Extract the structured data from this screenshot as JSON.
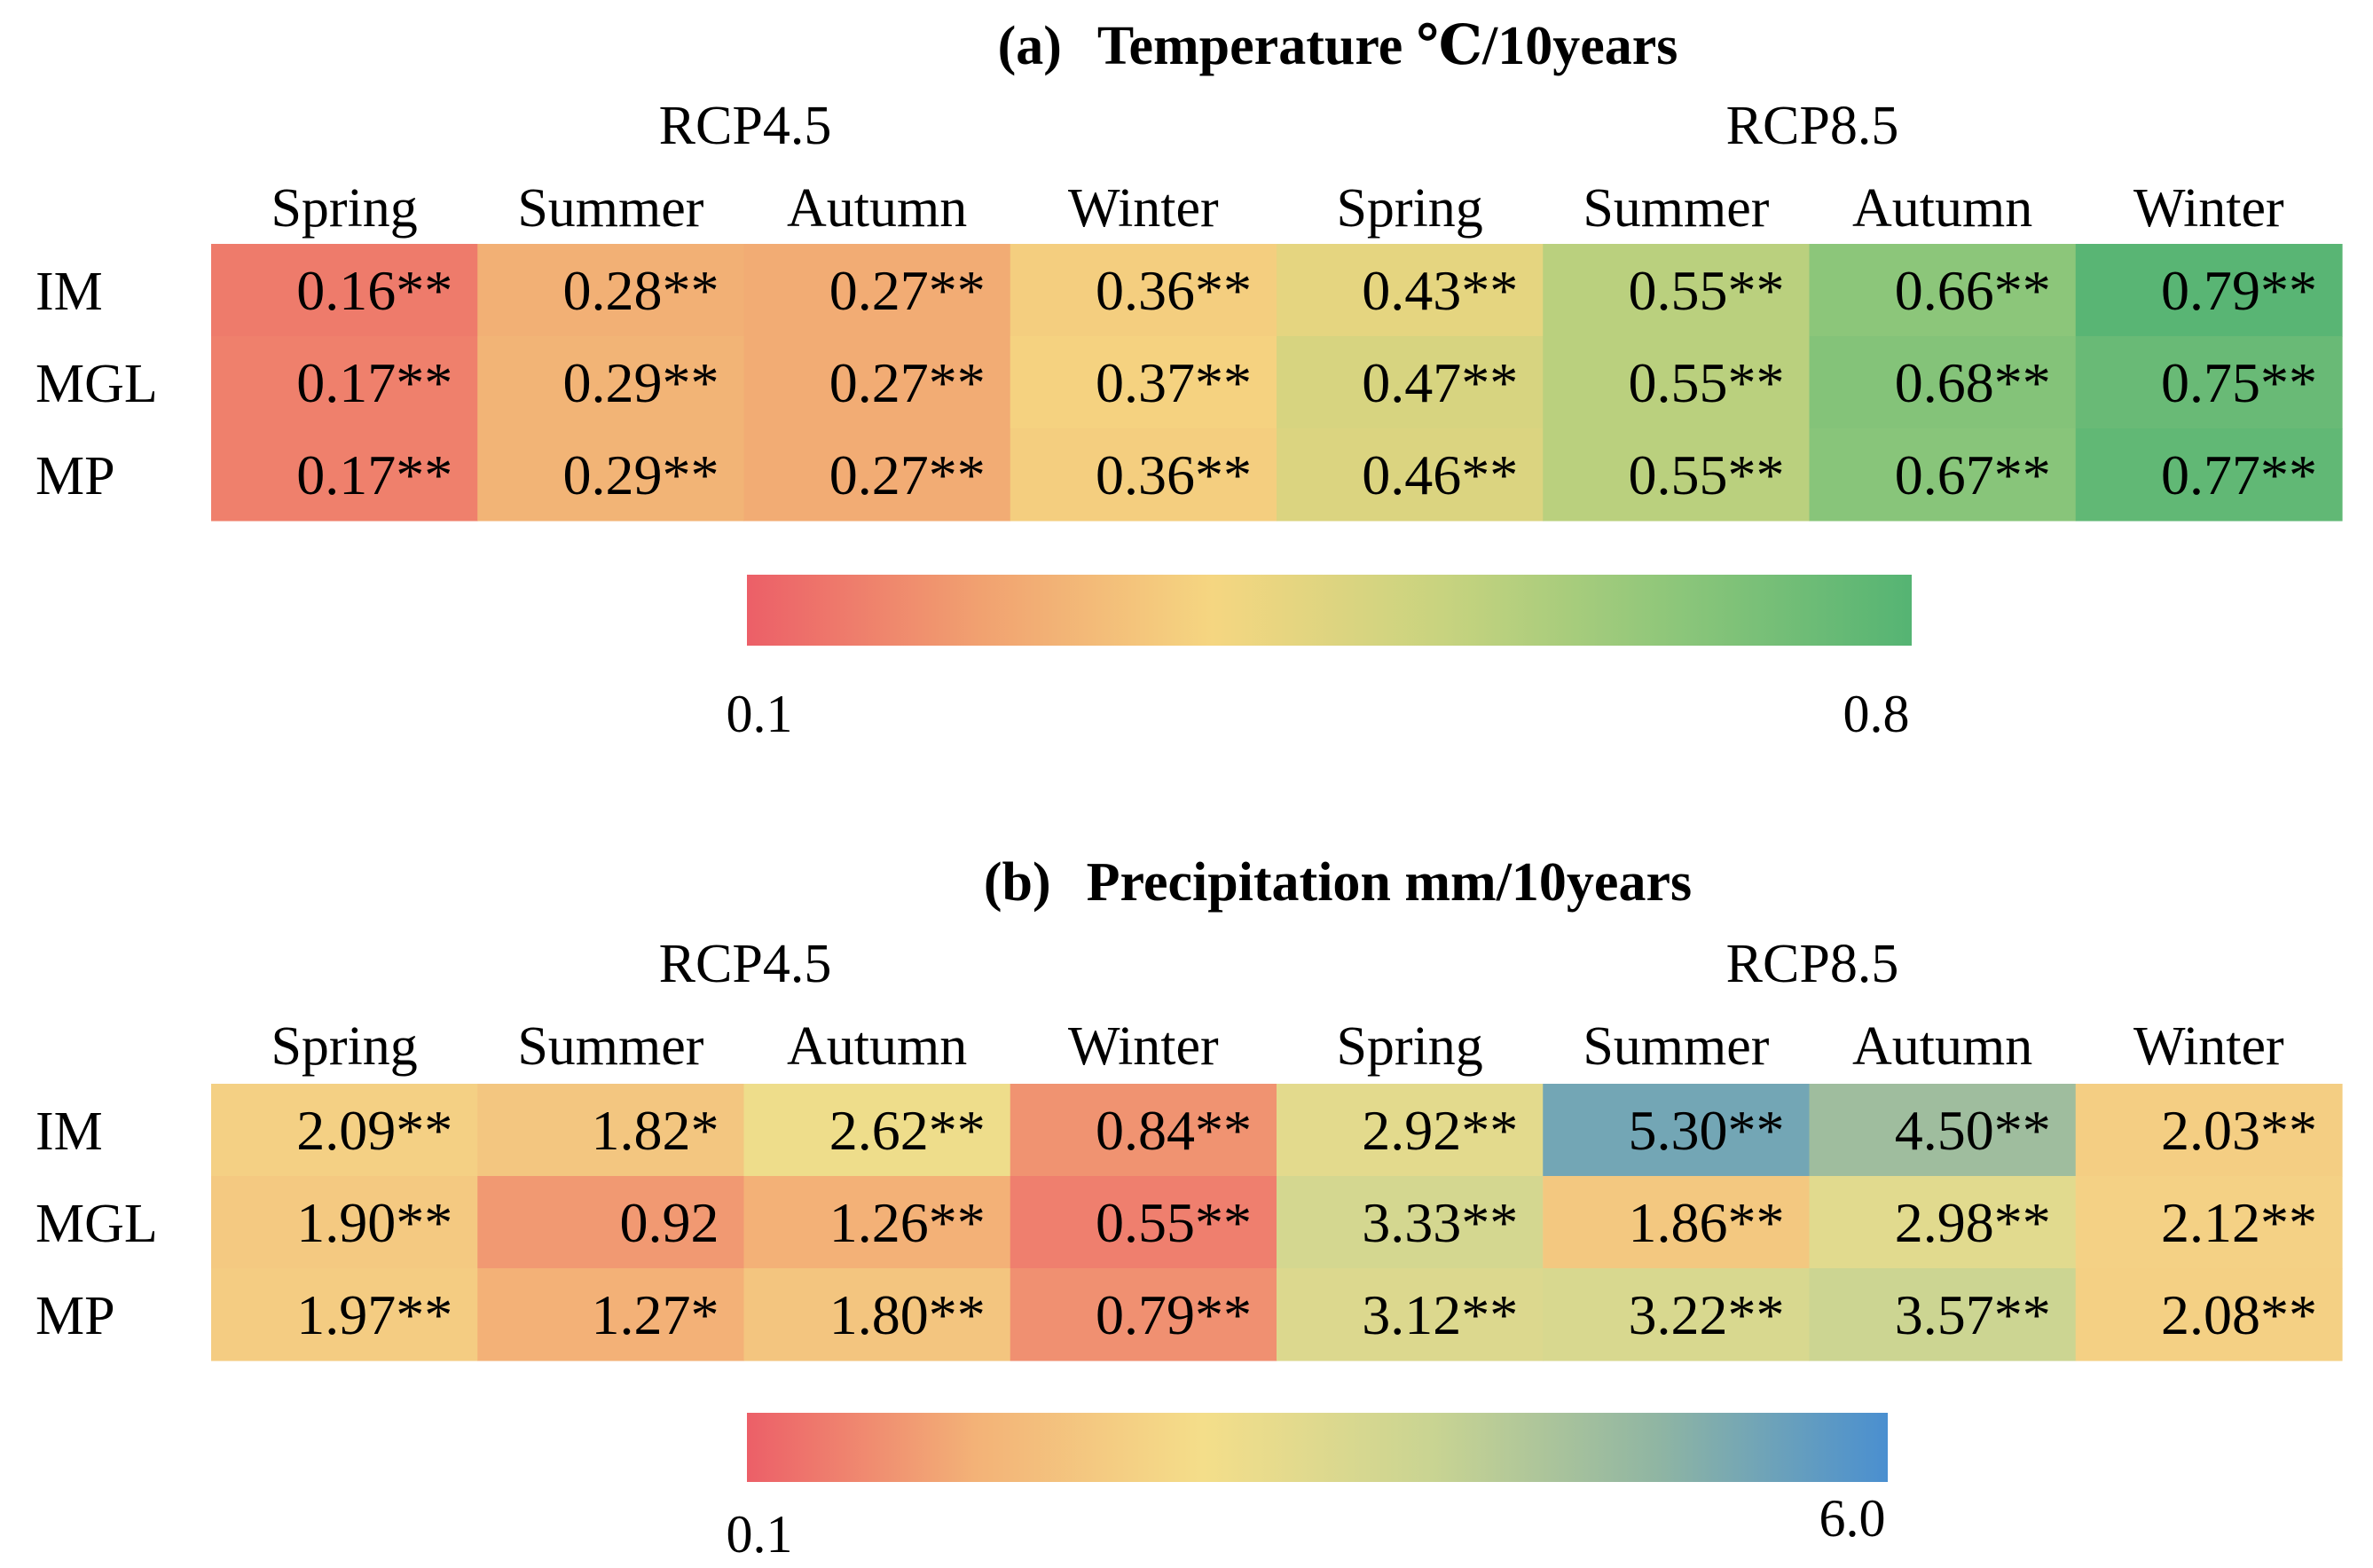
{
  "chart_data": [
    {
      "type": "heatmap",
      "title_prefix": "(a)",
      "title": "Temperature ℃/10years",
      "groups": [
        "RCP4.5",
        "RCP8.5"
      ],
      "columns": [
        "Spring",
        "Summer",
        "Autumn",
        "Winter",
        "Spring",
        "Summer",
        "Autumn",
        "Winter"
      ],
      "rows": [
        "IM",
        "MGL",
        "MP"
      ],
      "values": [
        [
          0.16,
          0.28,
          0.27,
          0.36,
          0.43,
          0.55,
          0.66,
          0.79
        ],
        [
          0.17,
          0.29,
          0.27,
          0.37,
          0.47,
          0.55,
          0.68,
          0.75
        ],
        [
          0.17,
          0.29,
          0.27,
          0.36,
          0.46,
          0.55,
          0.67,
          0.77
        ]
      ],
      "labels": [
        [
          "0.16**",
          "0.28**",
          "0.27**",
          "0.36**",
          "0.43**",
          "0.55**",
          "0.66**",
          "0.79**"
        ],
        [
          "0.17**",
          "0.29**",
          "0.27**",
          "0.37**",
          "0.47**",
          "0.55**",
          "0.68**",
          "0.75**"
        ],
        [
          "0.17**",
          "0.29**",
          "0.27**",
          "0.36**",
          "0.46**",
          "0.55**",
          "0.67**",
          "0.77**"
        ]
      ],
      "colorbar": {
        "min": 0.1,
        "max": 0.8,
        "min_label": "0.1",
        "max_label": "0.8",
        "colors": [
          "#ec5f68",
          "#f1a170",
          "#f5d681",
          "#c7d37f",
          "#8cc67a",
          "#55b473"
        ]
      }
    },
    {
      "type": "heatmap",
      "title_prefix": "(b)",
      "title": "Precipitation  mm/10years",
      "groups": [
        "RCP4.5",
        "RCP8.5"
      ],
      "columns": [
        "Spring",
        "Summer",
        "Autumn",
        "Winter",
        "Spring",
        "Summer",
        "Autumn",
        "Winter"
      ],
      "rows": [
        "IM",
        "MGL",
        "MP"
      ],
      "values": [
        [
          2.09,
          1.82,
          2.62,
          0.84,
          2.92,
          5.3,
          4.5,
          2.03
        ],
        [
          1.9,
          0.92,
          1.26,
          0.55,
          3.33,
          1.86,
          2.98,
          2.12
        ],
        [
          1.97,
          1.27,
          1.8,
          0.79,
          3.12,
          3.22,
          3.57,
          2.08
        ]
      ],
      "labels": [
        [
          "2.09**",
          "1.82*",
          "2.62**",
          "0.84**",
          "2.92**",
          "5.30**",
          "4.50**",
          "2.03**"
        ],
        [
          "1.90**",
          "0.92",
          "1.26**",
          "0.55**",
          "3.33**",
          "1.86**",
          "2.98**",
          "2.12**"
        ],
        [
          "1.97**",
          "1.27*",
          "1.80**",
          "0.79**",
          "3.12**",
          "3.22**",
          "3.57**",
          "2.08**"
        ]
      ],
      "colorbar": {
        "min": 0.1,
        "max": 6.0,
        "min_label": "0.1",
        "max_label": "6.0",
        "colors": [
          "#ec5f68",
          "#f3b277",
          "#f4de8a",
          "#c9d492",
          "#8fb5a3",
          "#4a8fd0"
        ]
      }
    }
  ]
}
